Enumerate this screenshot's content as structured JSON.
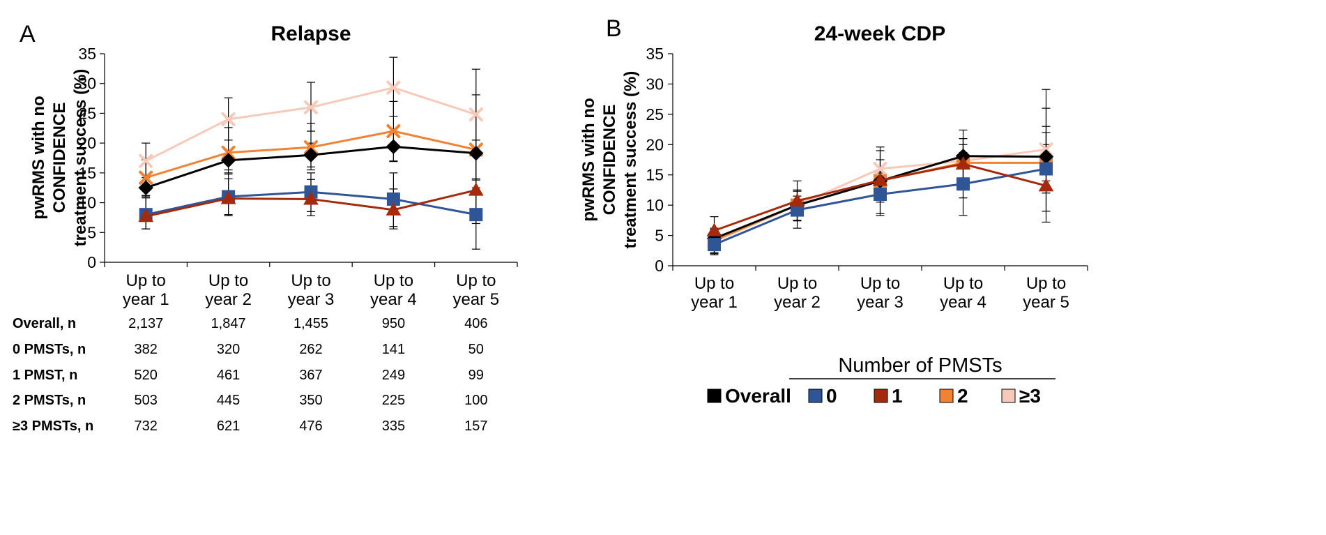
{
  "colors": {
    "Overall": "#000000",
    "0": "#2F5597",
    "1": "#A52A0D",
    "2": "#F08232",
    "3plus": "#F6C9B8"
  },
  "chart_data": [
    {
      "type": "line",
      "panel_label": "A",
      "title": "Relapse",
      "ylabel_lines": [
        "pwRMS with no",
        "CONFIDENCE",
        "treatment success (%)"
      ],
      "categories": [
        [
          "Up to",
          "year 1"
        ],
        [
          "Up to",
          "year 2"
        ],
        [
          "Up to",
          "year 3"
        ],
        [
          "Up to",
          "year 4"
        ],
        [
          "Up to",
          "year 5"
        ]
      ],
      "ylim": [
        0,
        35
      ],
      "yticks": [
        0,
        5,
        10,
        15,
        20,
        25,
        30,
        35
      ],
      "series": [
        {
          "name": "≥3",
          "key": "3plus",
          "marker": "x",
          "values": [
            17.0,
            24.0,
            26.0,
            29.3,
            24.8
          ],
          "err": [
            [
              13.8,
              20.0
            ],
            [
              20.5,
              27.6
            ],
            [
              22.0,
              30.2
            ],
            [
              24.5,
              34.4
            ],
            [
              18.0,
              32.4
            ]
          ]
        },
        {
          "name": "2",
          "key": "2",
          "marker": "x",
          "values": [
            14.2,
            18.4,
            19.3,
            22.0,
            18.9
          ],
          "err": [
            [
              11.2,
              17.2
            ],
            [
              14.8,
              22.6
            ],
            [
              15.5,
              23.3
            ],
            [
              17.0,
              27.0
            ],
            [
              12.5,
              28.1
            ]
          ]
        },
        {
          "name": "Overall",
          "key": "Overall",
          "marker": "diamond",
          "values": [
            12.5,
            17.1,
            18.0,
            19.4,
            18.3
          ],
          "err": [
            [
              11.0,
              14.2
            ],
            [
              15.5,
              18.8
            ],
            [
              16.0,
              20.0
            ],
            [
              16.9,
              22.0
            ],
            [
              14.0,
              20.5
            ]
          ]
        },
        {
          "name": "0",
          "key": "0",
          "marker": "square",
          "values": [
            8.0,
            11.0,
            11.8,
            10.6,
            8.0
          ],
          "err": [
            [
              5.6,
              11.2
            ],
            [
              8.0,
              15.0
            ],
            [
              8.5,
              15.0
            ],
            [
              6.0,
              15.0
            ],
            [
              2.2,
              13.8
            ]
          ]
        },
        {
          "name": "1",
          "key": "1",
          "marker": "triangle",
          "values": [
            7.7,
            10.7,
            10.6,
            8.8,
            12.1
          ],
          "err": [
            [
              5.6,
              10.8
            ],
            [
              7.8,
              14.0
            ],
            [
              7.8,
              13.9
            ],
            [
              5.6,
              12.3
            ],
            [
              6.5,
              18.0
            ]
          ]
        }
      ],
      "table": {
        "rows": [
          {
            "label": "Overall, n",
            "values": [
              "2,137",
              "1,847",
              "1,455",
              "950",
              "406"
            ]
          },
          {
            "label": "0 PMSTs, n",
            "values": [
              "382",
              "320",
              "262",
              "141",
              "50"
            ]
          },
          {
            "label": "1 PMST, n",
            "values": [
              "520",
              "461",
              "367",
              "249",
              "99"
            ]
          },
          {
            "label": "2 PMSTs, n",
            "values": [
              "503",
              "445",
              "350",
              "225",
              "100"
            ]
          },
          {
            "label": "≥3 PMSTs, n",
            "values": [
              "732",
              "621",
              "476",
              "335",
              "157"
            ]
          }
        ]
      }
    },
    {
      "type": "line",
      "panel_label": "B",
      "title": "24-week CDP",
      "ylabel_lines": [
        "pwRMS with no",
        "CONFIDENCE",
        "treatment success (%)"
      ],
      "categories": [
        [
          "Up to",
          "year 1"
        ],
        [
          "Up to",
          "year 2"
        ],
        [
          "Up to",
          "year 3"
        ],
        [
          "Up to",
          "year 4"
        ],
        [
          "Up to",
          "year 5"
        ]
      ],
      "ylim": [
        0,
        35
      ],
      "yticks": [
        0,
        5,
        10,
        15,
        20,
        25,
        30,
        35
      ],
      "series": [
        {
          "name": "≥3",
          "key": "3plus",
          "marker": "x",
          "values": [
            4.0,
            10.0,
            16.0,
            17.3,
            19.2
          ],
          "err": [
            [
              2.0,
              6.0
            ],
            [
              7.5,
              12.5
            ],
            [
              13.0,
              19.0
            ],
            [
              13.5,
              21.0
            ],
            [
              14.0,
              26.0
            ]
          ]
        },
        {
          "name": "2",
          "key": "2",
          "marker": "square",
          "values": [
            4.2,
            10.0,
            14.0,
            17.0,
            17.0
          ],
          "err": [
            [
              2.2,
              6.2
            ],
            [
              7.5,
              12.5
            ],
            [
              10.5,
              17.5
            ],
            [
              13.0,
              21.0
            ],
            [
              12.0,
              22.0
            ]
          ]
        },
        {
          "name": "Overall",
          "key": "Overall",
          "marker": "diamond",
          "values": [
            4.5,
            10.0,
            14.0,
            18.1,
            18.0
          ],
          "err": [
            [
              3.0,
              6.0
            ],
            [
              8.5,
              11.5
            ],
            [
              12.5,
              15.5
            ],
            [
              16.0,
              20.0
            ],
            [
              16.0,
              20.0
            ]
          ]
        },
        {
          "name": "0",
          "key": "0",
          "marker": "square",
          "values": [
            3.5,
            9.2,
            11.8,
            13.5,
            16.0
          ],
          "err": [
            [
              1.8,
              5.2
            ],
            [
              6.2,
              12.3
            ],
            [
              8.3,
              15.3
            ],
            [
              8.3,
              18.7
            ],
            [
              9.0,
              23.0
            ]
          ]
        },
        {
          "name": "1",
          "key": "1",
          "marker": "triangle",
          "values": [
            5.8,
            10.7,
            14.1,
            16.8,
            13.2
          ],
          "err": [
            [
              3.5,
              8.1
            ],
            [
              7.4,
              14.0
            ],
            [
              8.6,
              19.6
            ],
            [
              11.2,
              22.4
            ],
            [
              7.2,
              29.1
            ]
          ]
        }
      ]
    }
  ],
  "legend": {
    "title": "Number of PMSTs",
    "items": [
      {
        "key": "Overall",
        "label": "Overall"
      },
      {
        "key": "0",
        "label": "0"
      },
      {
        "key": "1",
        "label": "1"
      },
      {
        "key": "2",
        "label": "2"
      },
      {
        "key": "3plus",
        "label": "≥3"
      }
    ]
  }
}
